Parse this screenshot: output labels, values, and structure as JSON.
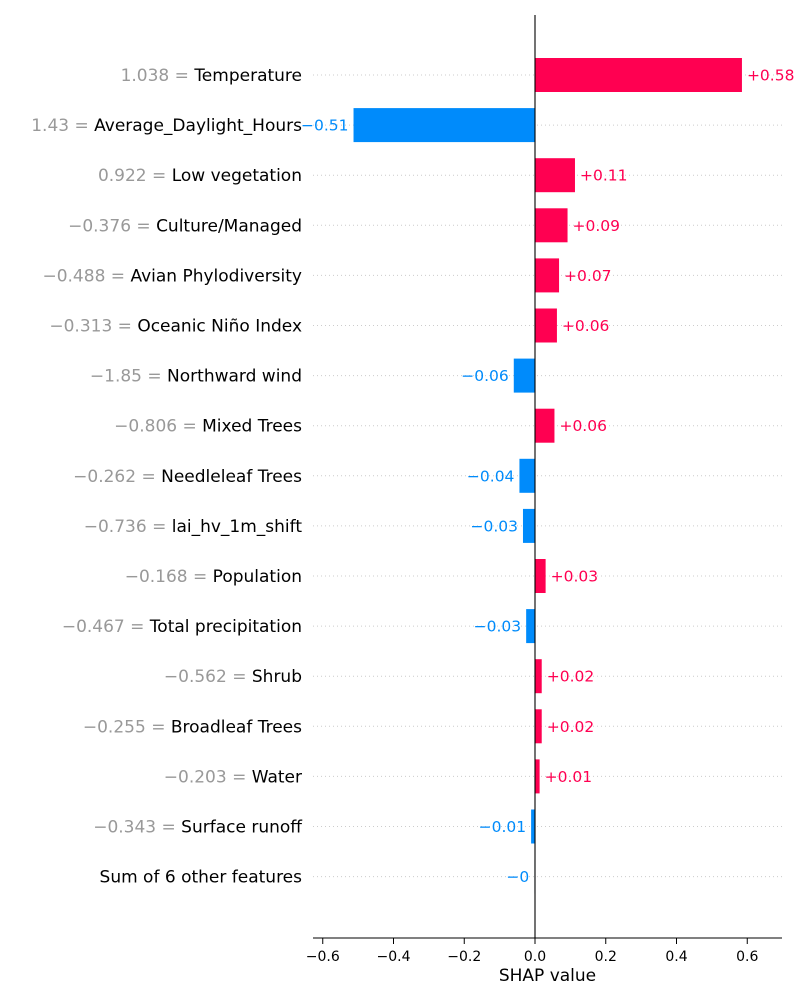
{
  "chart_data": {
    "type": "bar",
    "orientation": "horizontal",
    "xlabel": "SHAP value",
    "xlim": [
      -0.63,
      0.7
    ],
    "xticks": [
      -0.6,
      -0.4,
      -0.2,
      0.0,
      0.2,
      0.4,
      0.6
    ],
    "xtick_labels": [
      "−0.6",
      "−0.4",
      "−0.2",
      "0.0",
      "0.2",
      "0.4",
      "0.6"
    ],
    "positive_color": "#ff0051",
    "negative_color": "#008bfb",
    "features": [
      {
        "value": "1.038",
        "name": "Temperature",
        "shap": 0.585,
        "label": "+0.58"
      },
      {
        "value": "1.43",
        "name": "Average_Daylight_Hours",
        "shap": -0.513,
        "label": "−0.51"
      },
      {
        "value": "0.922",
        "name": "Low vegetation",
        "shap": 0.113,
        "label": "+0.11"
      },
      {
        "value": "−0.376",
        "name": "Culture/Managed",
        "shap": 0.092,
        "label": "+0.09"
      },
      {
        "value": "−0.488",
        "name": "Avian Phylodiversity",
        "shap": 0.068,
        "label": "+0.07"
      },
      {
        "value": "−0.313",
        "name": "Oceanic Niño Index",
        "shap": 0.062,
        "label": "+0.06"
      },
      {
        "value": "−1.85",
        "name": "Northward wind",
        "shap": -0.06,
        "label": "−0.06"
      },
      {
        "value": "−0.806",
        "name": "Mixed Trees",
        "shap": 0.055,
        "label": "+0.06"
      },
      {
        "value": "−0.262",
        "name": "Needleleaf Trees",
        "shap": -0.044,
        "label": "−0.04"
      },
      {
        "value": "−0.736",
        "name": "lai_hv_1m_shift",
        "shap": -0.034,
        "label": "−0.03"
      },
      {
        "value": "−0.168",
        "name": "Population",
        "shap": 0.03,
        "label": "+0.03"
      },
      {
        "value": "−0.467",
        "name": "Total precipitation",
        "shap": -0.025,
        "label": "−0.03"
      },
      {
        "value": "−0.562",
        "name": "Shrub",
        "shap": 0.019,
        "label": "+0.02"
      },
      {
        "value": "−0.255",
        "name": "Broadleaf Trees",
        "shap": 0.019,
        "label": "+0.02"
      },
      {
        "value": "−0.203",
        "name": "Water",
        "shap": 0.013,
        "label": "+0.01"
      },
      {
        "value": "−0.343",
        "name": "Surface runoff",
        "shap": -0.011,
        "label": "−0.01"
      },
      {
        "value": "",
        "name": "Sum of 6 other features",
        "shap": -0.002,
        "label": "−0",
        "other_features": true
      }
    ]
  }
}
